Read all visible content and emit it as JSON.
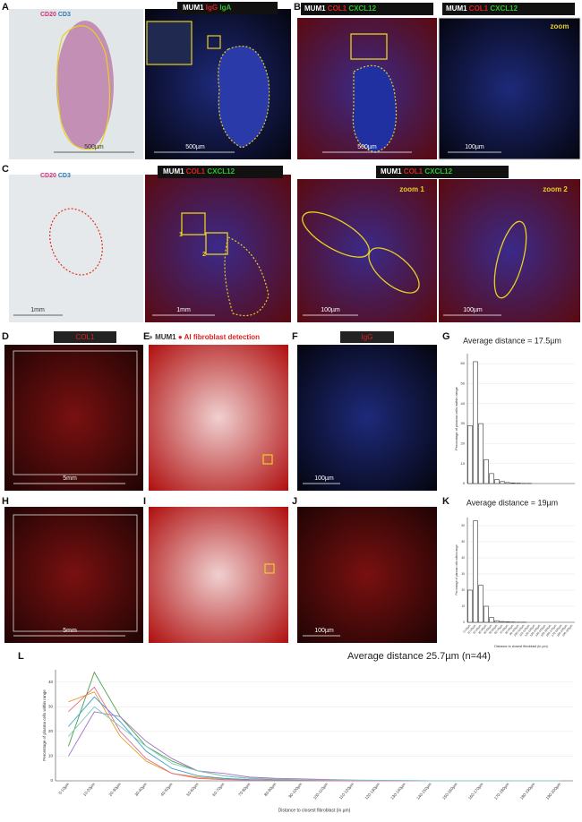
{
  "panels": {
    "A": {
      "label": "A",
      "left_legend": [
        "CD20",
        "CD3"
      ],
      "left_scale": "500µm",
      "right_legend": [
        "MUM1",
        "IgG",
        "IgA"
      ],
      "right_scale": "500µm"
    },
    "B": {
      "label": "B",
      "left_legend": [
        "MUM1",
        "COL1",
        "CXCL12"
      ],
      "left_scale": "500µm",
      "right_legend": [
        "MUM1",
        "COL1",
        "CXCL12"
      ],
      "right_tag": "zoom",
      "right_scale": "100µm"
    },
    "C": {
      "label": "C",
      "left_legend": [
        "CD20",
        "CD3"
      ],
      "left_scale": "1mm",
      "mid_legend": [
        "MUM1",
        "COL1",
        "CXCL12"
      ],
      "boxes": [
        "1",
        "2"
      ],
      "mid_scale": "1mm",
      "right_legend": [
        "MUM1",
        "COL1",
        "CXCL12"
      ],
      "zoom1": "zoom 1",
      "zoom2": "zoom 2",
      "zoom1_scale": "100µm",
      "zoom2_scale": "100µm"
    },
    "D": {
      "label": "D",
      "legend": "COL1",
      "scale": "5mm"
    },
    "E": {
      "label": "E",
      "legend": [
        "MUM1",
        "AI fibroblast detection"
      ]
    },
    "F": {
      "label": "F",
      "legend": "IgG",
      "scale": "100µm"
    },
    "G": {
      "label": "G"
    },
    "H": {
      "label": "H",
      "scale": "5mm"
    },
    "I": {
      "label": "I"
    },
    "J": {
      "label": "J",
      "scale": "100µm"
    },
    "K": {
      "label": "K"
    },
    "L": {
      "label": "L"
    }
  },
  "chart_data": [
    {
      "type": "bar",
      "title": "Average distance = 17.5µm",
      "y_label": "Percentage of plasma cells within range",
      "categories": [
        null,
        null,
        null,
        null,
        null,
        null,
        null,
        null,
        null,
        null,
        null,
        null,
        null,
        null,
        null,
        null,
        null,
        null,
        null,
        null
      ],
      "values": [
        29,
        61,
        30,
        12,
        5,
        2,
        1,
        0.5,
        0.3,
        0.2,
        0.1,
        0.1,
        0,
        0,
        0,
        0,
        0,
        0,
        0,
        0
      ],
      "color": "#ffffff",
      "ylim": [
        0,
        65
      ],
      "yticks": [
        0,
        10,
        20,
        30,
        40,
        50,
        60
      ]
    },
    {
      "type": "bar",
      "title": "Average distance = 19µm",
      "y_label": "Percentage of plasma cells within range",
      "x_label": "Distance to closest fibroblast (in µm)",
      "categories": [
        "0-10µm",
        "10-20µm",
        "20-30µm",
        "30-40µm",
        "40-50µm",
        "50-60µm",
        "60-70µm",
        "70-80µm",
        "80-90µm",
        "90-100µm",
        "100-110µm",
        "110-120µm",
        "120-130µm",
        "130-140µm",
        "140-150µm",
        "150-160µm",
        "160-170µm",
        "170-180µm",
        "180-190µm",
        "190-200µm"
      ],
      "values": [
        20,
        63,
        23,
        10,
        3,
        1,
        0.5,
        0.3,
        0.2,
        0.1,
        0.1,
        0,
        0,
        0,
        0,
        0,
        0,
        0,
        0,
        0
      ],
      "color": "#ffffff",
      "ylim": [
        0,
        65
      ],
      "yticks": [
        0,
        10,
        20,
        30,
        40,
        50,
        60
      ]
    },
    {
      "type": "line",
      "title": "Average distance 25.7µm (n=44)",
      "y_label": "Percentage of plasma cells within range",
      "x_label": "Distance to closest fibroblast (in µm)",
      "categories": [
        "0-10µm",
        "10-20µm",
        "20-30µm",
        "30-40µm",
        "40-50µm",
        "50-60µm",
        "60-70µm",
        "70-80µm",
        "80-90µm",
        "90-100µm",
        "100-110µm",
        "110-120µm",
        "120-130µm",
        "130-140µm",
        "140-150µm",
        "150-160µm",
        "160-170µm",
        "170-180µm",
        "180-190µm",
        "190-200µm"
      ],
      "series": [
        {
          "color": "#4aa34a",
          "values": [
            14,
            44,
            26,
            14,
            8,
            4,
            2,
            1,
            0.6,
            0.4,
            0.3,
            0.2,
            0.1,
            0,
            0,
            0,
            0,
            0,
            0,
            0
          ]
        },
        {
          "color": "#e0a02a",
          "values": [
            32,
            36,
            18,
            8,
            3,
            1.5,
            0.8,
            0.4,
            0.2,
            0.1,
            0.1,
            0,
            0,
            0,
            0,
            0,
            0,
            0,
            0,
            0
          ]
        },
        {
          "color": "#3aa0d0",
          "values": [
            22,
            34,
            24,
            12,
            5,
            2,
            1,
            0.5,
            0.3,
            0.2,
            0.1,
            0,
            0,
            0,
            0,
            0,
            0,
            0,
            0,
            0
          ]
        },
        {
          "color": "#a070c8",
          "values": [
            10,
            28,
            26,
            16,
            9,
            4,
            3,
            1.5,
            1,
            0.8,
            0.5,
            0.3,
            0.2,
            0.1,
            0,
            0,
            0,
            0,
            0,
            0
          ]
        },
        {
          "color": "#e06a8a",
          "values": [
            28,
            38,
            20,
            9,
            3,
            1,
            0.5,
            0.3,
            0.2,
            0.1,
            0,
            0,
            0,
            0,
            0,
            0,
            0,
            0,
            0,
            0
          ]
        },
        {
          "color": "#7fc8c0",
          "values": [
            18,
            30,
            22,
            14,
            7,
            4,
            2,
            1,
            0.8,
            0.5,
            0.3,
            0.2,
            0.1,
            0.1,
            0,
            0,
            0,
            0,
            0,
            0
          ]
        }
      ],
      "ylim": [
        0,
        45
      ],
      "yticks": [
        0,
        10,
        20,
        30,
        40
      ]
    }
  ]
}
